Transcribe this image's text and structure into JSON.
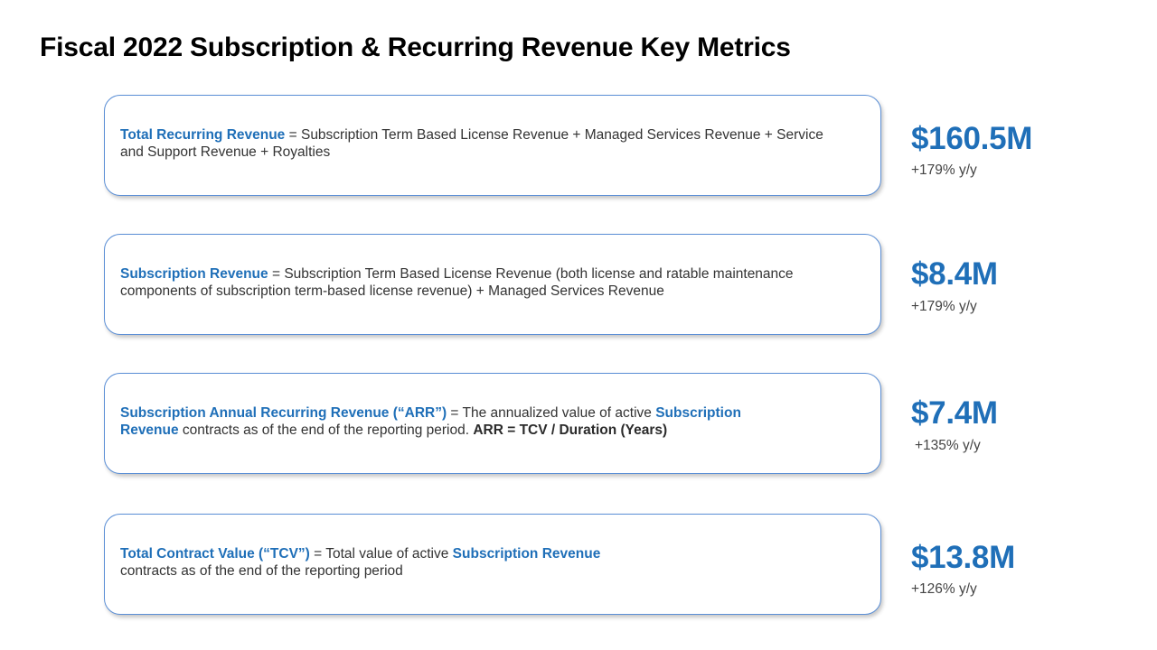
{
  "title": "Fiscal 2022 Subscription & Recurring Revenue Key Metrics",
  "metrics": [
    {
      "term": "Total Recurring Revenue",
      "def_1": " = Subscription Term Based License Revenue + Managed Services Revenue + Service",
      "def_2": "and Support Revenue + Royalties",
      "value": "$160.5M",
      "growth": "+179% y/y"
    },
    {
      "term": "Subscription Revenue",
      "def_1": " = Subscription Term Based License Revenue (both license and ratable maintenance",
      "def_2": "components of subscription term-based license  revenue) + Managed Services Revenue",
      "value": "$8.4M",
      "growth": "+179% y/y"
    },
    {
      "term": "Subscription Annual Recurring Revenue (“ARR”)",
      "def_1": " = The annualized value of  active ",
      "term_b1": "Subscription",
      "term_b2": "Revenue",
      "def_2": " contracts as of the end of the reporting period. ",
      "formula": "ARR = TCV / Duration (Years)",
      "value": "$7.4M",
      "growth": "+135% y/y"
    },
    {
      "term": "Total Contract Value (“TCV”)",
      "def_1": " = Total value of active ",
      "term_b": "Subscription Revenue",
      "def_2": "contracts as of the end of the reporting period",
      "value": "$13.8M",
      "growth": "+126% y/y"
    }
  ],
  "colors": {
    "accent": "#1f6fb8",
    "box_border": "#5b8fd6"
  }
}
